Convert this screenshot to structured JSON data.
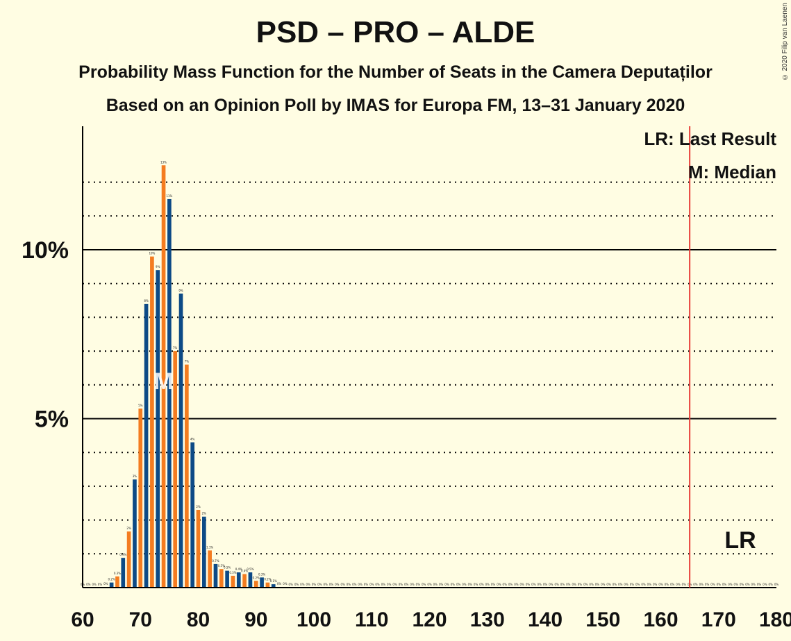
{
  "title": "PSD – PRO – ALDE",
  "subtitle1": "Probability Mass Function for the Number of Seats in the Camera Deputaților",
  "subtitle2": "Based on an Opinion Poll by IMAS for Europa FM, 13–31 January 2020",
  "copyright": "© 2020 Filip van Laenen",
  "legend": {
    "lr": "LR: Last Result",
    "m": "M: Median"
  },
  "markers": {
    "lr_label": "LR",
    "median_label": "M"
  },
  "colors": {
    "background": "#FFFDE3",
    "blue": "#0D4A86",
    "orange": "#F47C20",
    "red": "#E6332A",
    "lr_line": "#E8403A"
  },
  "chart_data": {
    "type": "bar",
    "xlim": [
      60,
      180
    ],
    "ylim": [
      0,
      13.6
    ],
    "x_ticks": [
      60,
      70,
      80,
      90,
      100,
      110,
      120,
      130,
      140,
      150,
      160,
      170,
      180
    ],
    "y_ticks": [
      {
        "value": 5,
        "label": "5%"
      },
      {
        "value": 10,
        "label": "10%"
      }
    ],
    "last_result": 165,
    "median": 74,
    "x": [
      60,
      61,
      62,
      63,
      64,
      65,
      66,
      67,
      68,
      69,
      70,
      71,
      72,
      73,
      74,
      75,
      76,
      77,
      78,
      79,
      80,
      81,
      82,
      83,
      84,
      85,
      86,
      87,
      88,
      89,
      90,
      91,
      92,
      93,
      94,
      95,
      96,
      97,
      98,
      99,
      100,
      101,
      102,
      103,
      104,
      105,
      106,
      107,
      108,
      109,
      110,
      111,
      112,
      113,
      114,
      115,
      116,
      117,
      118,
      119,
      120,
      121,
      122,
      123,
      124,
      125,
      126,
      127,
      128,
      129,
      130,
      131,
      132,
      133,
      134,
      135,
      136,
      137,
      138,
      139,
      140,
      141,
      142,
      143,
      144,
      145,
      146,
      147,
      148,
      149,
      150,
      151,
      152,
      153,
      154,
      155,
      156,
      157,
      158,
      159,
      160,
      161,
      162,
      163,
      164,
      165,
      166,
      167,
      168,
      169,
      170,
      171,
      172,
      173,
      174,
      175,
      176,
      177,
      178,
      179,
      180
    ],
    "values": [
      0,
      0,
      0,
      0,
      0.02,
      0.15,
      0.33,
      0.88,
      1.66,
      3.2,
      5.3,
      8.4,
      9.8,
      9.4,
      12.5,
      11.5,
      7,
      8.7,
      6.6,
      4.3,
      2.3,
      2.1,
      1.1,
      0.7,
      0.55,
      0.5,
      0.35,
      0.45,
      0.4,
      0.45,
      0.2,
      0.3,
      0.15,
      0.1,
      0.02,
      0.02,
      0,
      0,
      0,
      0,
      0,
      0,
      0,
      0,
      0,
      0,
      0,
      0,
      0,
      0,
      0,
      0,
      0,
      0,
      0,
      0,
      0,
      0,
      0,
      0,
      0,
      0,
      0,
      0,
      0,
      0,
      0,
      0,
      0,
      0,
      0,
      0,
      0,
      0,
      0,
      0,
      0,
      0,
      0,
      0,
      0,
      0,
      0,
      0,
      0,
      0,
      0,
      0,
      0,
      0,
      0,
      0,
      0,
      0,
      0,
      0,
      0,
      0,
      0,
      0,
      0,
      0,
      0,
      0,
      0,
      0,
      0,
      0,
      0,
      0,
      0,
      0,
      0,
      0,
      0,
      0,
      0,
      0,
      0,
      0,
      0
    ],
    "data_labels": [
      "0%",
      "0%",
      "0%",
      "0%",
      "0%",
      "0.2%",
      "0.3%",
      "0.9%",
      "2%",
      "3%",
      "5%",
      "8%",
      "10%",
      "9%",
      "13%",
      "11%",
      "7%",
      "9%",
      "7%",
      "4%",
      "2%",
      "2%",
      "1.1%",
      "0.7%",
      "0.5%",
      "0.5%",
      "0.3%",
      "0.4%",
      "0.4%",
      "0.5%",
      "0.2%",
      "0.3%",
      "0.2%",
      "0.1%",
      "0%",
      "0%",
      "0%",
      "0%",
      "0%",
      "0%",
      "0%",
      "0%",
      "0%",
      "0%",
      "0%",
      "0%",
      "0%",
      "0%",
      "0%",
      "0%",
      "0%",
      "0%",
      "0%",
      "0%",
      "0%",
      "0%",
      "0%",
      "0%",
      "0%",
      "0%",
      "0%",
      "0%",
      "0%",
      "0%",
      "0%",
      "0%",
      "0%",
      "0%",
      "0%",
      "0%",
      "0%",
      "0%",
      "0%",
      "0%",
      "0%",
      "0%",
      "0%",
      "0%",
      "0%",
      "0%",
      "0%",
      "0%",
      "0%",
      "0%",
      "0%",
      "0%",
      "0%",
      "0%",
      "0%",
      "0%",
      "0%",
      "0%",
      "0%",
      "0%",
      "0%",
      "0%",
      "0%",
      "0%",
      "0%",
      "0%",
      "0%",
      "0%",
      "0%",
      "0%",
      "0%",
      "0%",
      "0%",
      "0%",
      "0%",
      "0%",
      "0%",
      "0%",
      "0%",
      "0%",
      "0%",
      "0%",
      "0%",
      "0%",
      "0%",
      "0%",
      "0%"
    ]
  }
}
